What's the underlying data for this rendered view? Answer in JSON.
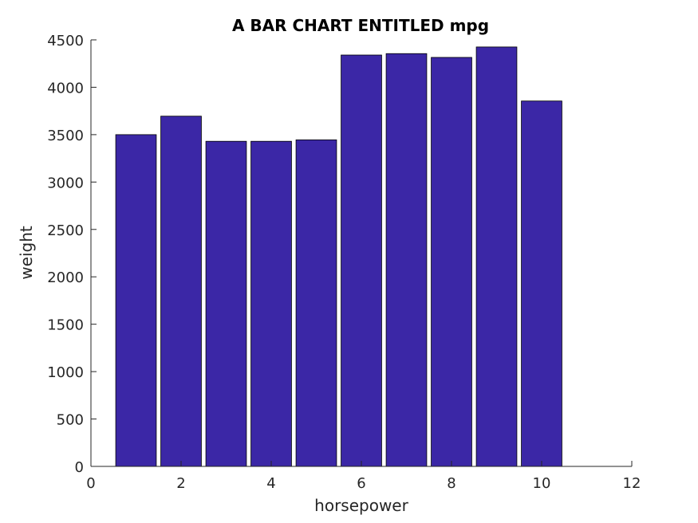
{
  "chart_data": {
    "type": "bar",
    "title": "A BAR CHART ENTITLED mpg",
    "xlabel": "horsepower",
    "ylabel": "weight",
    "x": [
      1,
      2,
      3,
      4,
      5,
      6,
      7,
      8,
      9,
      10
    ],
    "values": [
      3500,
      3695,
      3430,
      3430,
      3445,
      4340,
      4355,
      4315,
      4425,
      3855
    ],
    "xlim": [
      0,
      12
    ],
    "ylim": [
      0,
      4500
    ],
    "xticks": [
      0,
      2,
      4,
      6,
      8,
      10,
      12
    ],
    "yticks": [
      0,
      500,
      1000,
      1500,
      2000,
      2500,
      3000,
      3500,
      4000,
      4500
    ],
    "bar_width": 0.9,
    "bar_color": "#3b27a6",
    "grid": false,
    "legend": "none"
  }
}
